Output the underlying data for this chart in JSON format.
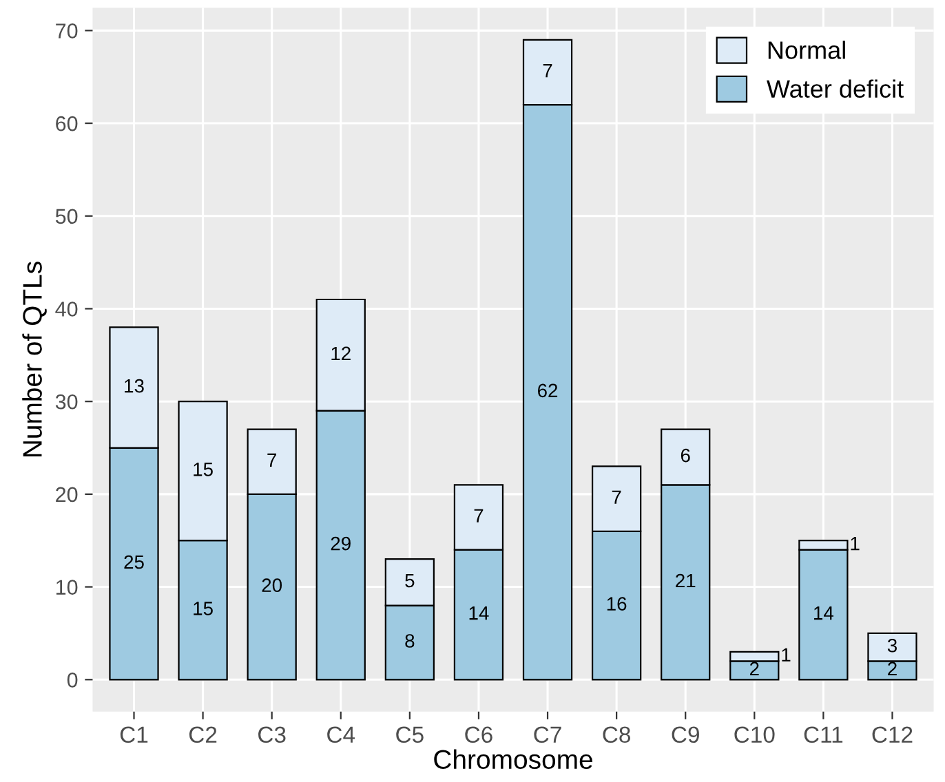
{
  "chart_data": {
    "type": "bar",
    "stacked": true,
    "xlabel": "Chromosome",
    "ylabel": "Number of QTLs",
    "categories": [
      "C1",
      "C2",
      "C3",
      "C4",
      "C5",
      "C6",
      "C7",
      "C8",
      "C9",
      "C10",
      "C11",
      "C12"
    ],
    "series": [
      {
        "name": "Water deficit",
        "color": "#9ecae1",
        "values": [
          25,
          15,
          20,
          29,
          8,
          14,
          62,
          16,
          21,
          2,
          14,
          2
        ]
      },
      {
        "name": "Normal",
        "color": "#deebf7",
        "values": [
          13,
          15,
          7,
          12,
          5,
          7,
          7,
          7,
          6,
          1,
          1,
          3
        ]
      }
    ],
    "ylim": [
      -3.45,
      72.45
    ],
    "yticks": [
      0,
      10,
      20,
      30,
      40,
      50,
      60,
      70
    ],
    "grid": true,
    "legend": "top right",
    "data_labels": true
  }
}
